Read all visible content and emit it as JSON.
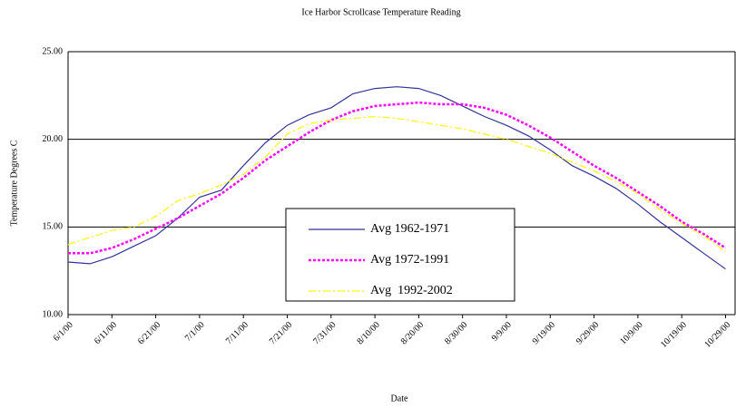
{
  "chart_data": {
    "type": "line",
    "title": "Ice Harbor Scrollcase Temperature Reading",
    "y_label": "Temperature Degrees C",
    "x_label": "Date",
    "categories": [
      "6/1/00",
      null,
      "6/11/00",
      null,
      "6/21/00",
      null,
      "7/1/00",
      null,
      "7/11/00",
      null,
      "7/21/00",
      null,
      "7/31/00",
      null,
      "8/10/00",
      null,
      "8/20/00",
      null,
      "8/30/00",
      null,
      "9/9/00",
      null,
      "9/19/00",
      null,
      "9/29/00",
      null,
      "10/9/00",
      null,
      "10/19/00",
      null,
      "10/29/00"
    ],
    "series": [
      {
        "name": "Avg 1962-1971",
        "color": "#333399",
        "dash": "none",
        "values": [
          13.0,
          12.9,
          13.3,
          13.9,
          14.5,
          15.5,
          16.7,
          17.1,
          18.5,
          19.8,
          20.8,
          21.4,
          21.8,
          22.6,
          22.9,
          23.0,
          22.9,
          22.5,
          21.9,
          21.3,
          20.8,
          20.2,
          19.4,
          18.5,
          17.9,
          17.2,
          16.3,
          15.3,
          14.4,
          13.5,
          12.6
        ]
      },
      {
        "name": "Avg 1972-1991",
        "color": "#ff00ff",
        "dash": "3 2",
        "values": [
          13.5,
          13.5,
          13.8,
          14.3,
          14.9,
          15.5,
          16.2,
          16.9,
          17.8,
          18.8,
          19.6,
          20.4,
          21.1,
          21.6,
          21.9,
          22.0,
          22.1,
          22.0,
          22.0,
          21.8,
          21.4,
          20.8,
          20.1,
          19.3,
          18.5,
          17.8,
          17.0,
          16.2,
          15.3,
          14.6,
          13.8
        ]
      },
      {
        "name": "Avg  1992-2002",
        "color": "#ffff00",
        "dash": "8 3 2 3",
        "values": [
          14.0,
          14.4,
          14.8,
          15.0,
          15.6,
          16.5,
          16.9,
          17.4,
          18.0,
          19.0,
          20.3,
          20.9,
          21.1,
          21.2,
          21.3,
          21.2,
          21.0,
          20.8,
          20.6,
          20.3,
          20.0,
          19.6,
          19.2,
          18.7,
          18.2,
          17.6,
          16.9,
          16.0,
          15.2,
          14.5,
          13.6
        ]
      }
    ],
    "ylim": [
      10,
      25
    ],
    "yticks": [
      {
        "value": 10,
        "label": "10.00"
      },
      {
        "value": 15,
        "label": "15.00"
      },
      {
        "value": 20,
        "label": "20.00"
      },
      {
        "value": 25,
        "label": "25.00"
      }
    ],
    "grid": true,
    "legend": "center"
  }
}
